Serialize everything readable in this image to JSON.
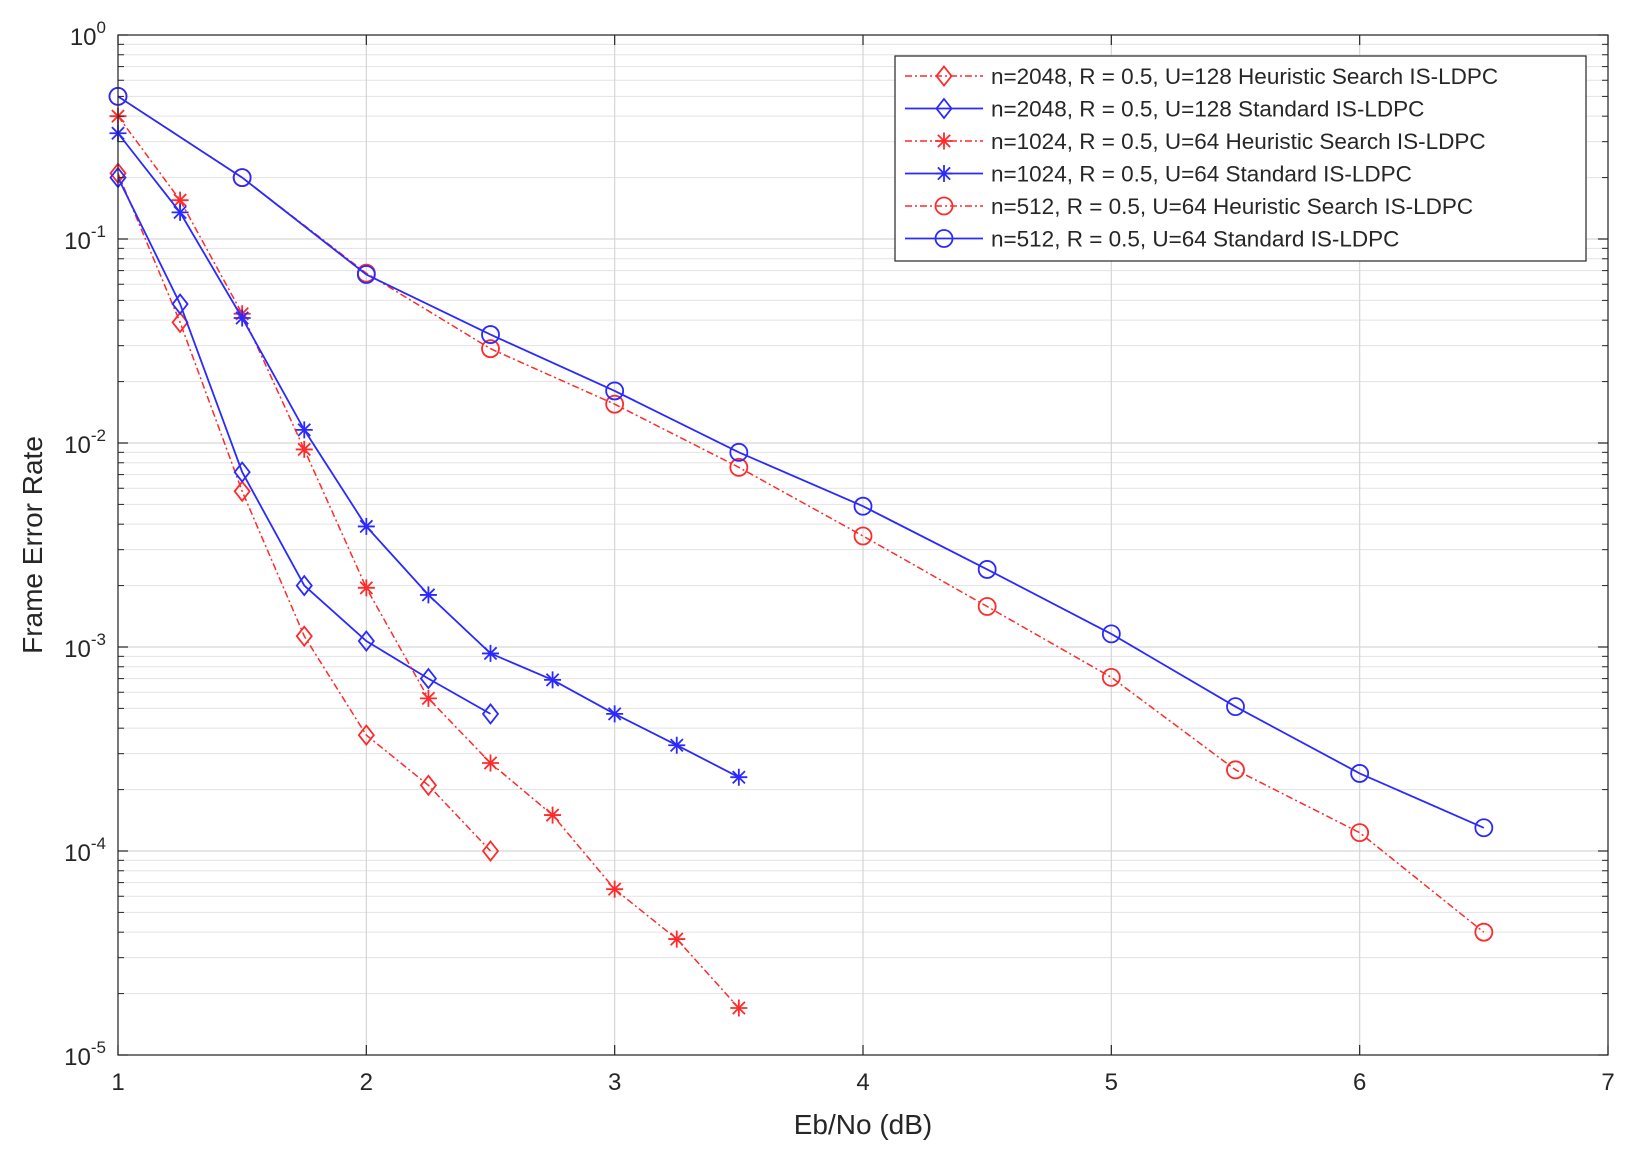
{
  "chart_data": {
    "type": "line",
    "title": "",
    "xlabel": "Eb/No (dB)",
    "ylabel": "Frame Error Rate",
    "xlim": [
      1,
      7
    ],
    "ylim": [
      1e-05,
      1
    ],
    "yscale": "log",
    "grid": true,
    "minor_grid": true,
    "legend_position": "top-right",
    "x_ticks": [
      1,
      2,
      3,
      4,
      5,
      6,
      7
    ],
    "x_tick_labels": [
      "1",
      "2",
      "3",
      "4",
      "5",
      "6",
      "7"
    ],
    "y_ticks": [
      {
        "value": 1,
        "base": "10",
        "exp": "0"
      },
      {
        "value": 0.1,
        "base": "10",
        "exp": "-1"
      },
      {
        "value": 0.01,
        "base": "10",
        "exp": "-2"
      },
      {
        "value": 0.001,
        "base": "10",
        "exp": "-3"
      },
      {
        "value": 0.0001,
        "base": "10",
        "exp": "-4"
      },
      {
        "value": 1e-05,
        "base": "10",
        "exp": "-5"
      }
    ],
    "series": [
      {
        "name": "n=2048, R = 0.5, U=128 Heuristic Search IS-LDPC",
        "color": "#ff2a2a",
        "line": "dashdot",
        "marker": "diamond",
        "x": [
          1,
          1.25,
          1.5,
          1.75,
          2,
          2.25,
          2.5
        ],
        "y": [
          0.21,
          0.039,
          0.0058,
          0.00113,
          0.00037,
          0.00021,
          0.0001
        ]
      },
      {
        "name": "n=2048, R = 0.5, U=128 Standard IS-LDPC",
        "color": "#2a2aff",
        "line": "solid",
        "marker": "diamond",
        "x": [
          1,
          1.25,
          1.5,
          1.75,
          2,
          2.25,
          2.5
        ],
        "y": [
          0.2,
          0.048,
          0.0072,
          0.002,
          0.00107,
          0.0007,
          0.00047
        ]
      },
      {
        "name": "n=1024, R = 0.5, U=64 Heuristic Search IS-LDPC",
        "color": "#ff2a2a",
        "line": "dashdot",
        "marker": "asterisk",
        "x": [
          1,
          1.25,
          1.5,
          1.75,
          2,
          2.25,
          2.5,
          2.75,
          3,
          3.25,
          3.5
        ],
        "y": [
          0.4,
          0.155,
          0.043,
          0.0093,
          0.00195,
          0.00056,
          0.00027,
          0.00015,
          6.5e-05,
          3.7e-05,
          1.7e-05
        ]
      },
      {
        "name": "n=1024, R = 0.5, U=64 Standard IS-LDPC",
        "color": "#2a2aff",
        "line": "solid",
        "marker": "asterisk",
        "x": [
          1,
          1.25,
          1.5,
          1.75,
          2,
          2.25,
          2.5,
          2.75,
          3,
          3.25,
          3.5
        ],
        "y": [
          0.33,
          0.135,
          0.041,
          0.0116,
          0.0039,
          0.0018,
          0.00093,
          0.00069,
          0.00047,
          0.00033,
          0.00023
        ]
      },
      {
        "name": "n=512, R = 0.5, U=64 Heuristic Search IS-LDPC",
        "color": "#ff2a2a",
        "line": "dashdot",
        "marker": "circle",
        "x": [
          1,
          1.5,
          2,
          2.5,
          3,
          3.5,
          4,
          4.5,
          5,
          5.5,
          6,
          6.5
        ],
        "y": [
          0.5,
          0.2,
          0.068,
          0.029,
          0.0155,
          0.0076,
          0.0035,
          0.00158,
          0.00071,
          0.00025,
          0.000123,
          4e-05
        ]
      },
      {
        "name": "n=512, R = 0.5, U=64 Standard IS-LDPC",
        "color": "#2a2aff",
        "line": "solid",
        "marker": "circle",
        "x": [
          1,
          1.5,
          2,
          2.5,
          3,
          3.5,
          4,
          4.5,
          5,
          5.5,
          6,
          6.5
        ],
        "y": [
          0.5,
          0.2,
          0.067,
          0.034,
          0.018,
          0.009,
          0.0049,
          0.0024,
          0.00116,
          0.00051,
          0.00024,
          0.00013
        ]
      }
    ]
  }
}
